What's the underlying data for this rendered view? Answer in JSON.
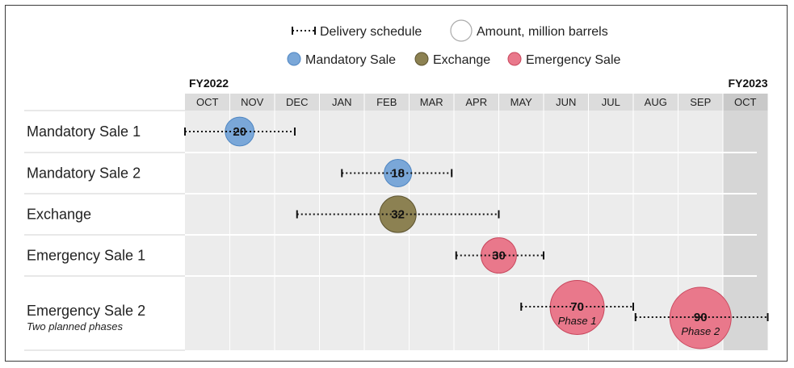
{
  "chart_data": {
    "type": "timeline-bubble",
    "legend": {
      "delivery_label": "Delivery schedule",
      "amount_label": "Amount, million barrels",
      "categories": [
        {
          "name": "Mandatory Sale",
          "color": "#7aa7d8"
        },
        {
          "name": "Exchange",
          "color": "#8c8152"
        },
        {
          "name": "Emergency Sale",
          "color": "#e9788b"
        }
      ]
    },
    "fiscal_years": [
      "FY2022",
      "FY2023"
    ],
    "months": [
      "OCT",
      "NOV",
      "DEC",
      "JAN",
      "FEB",
      "MAR",
      "APR",
      "MAY",
      "JUN",
      "JUL",
      "AUG",
      "SEP",
      "OCT"
    ],
    "rows": [
      {
        "label": "Mandatory Sale 1",
        "sublabel": "",
        "type": "Mandatory Sale",
        "spans": [
          {
            "start": 0,
            "end": 2.45,
            "center": 1.22,
            "amount": 20,
            "phase": ""
          }
        ]
      },
      {
        "label": "Mandatory Sale 2",
        "sublabel": "",
        "type": "Mandatory Sale",
        "spans": [
          {
            "start": 3.5,
            "end": 5.95,
            "center": 4.75,
            "amount": 18,
            "phase": ""
          }
        ]
      },
      {
        "label": "Exchange",
        "sublabel": "",
        "type": "Exchange",
        "spans": [
          {
            "start": 2.5,
            "end": 7.0,
            "center": 4.75,
            "amount": 32,
            "phase": ""
          }
        ]
      },
      {
        "label": "Emergency Sale 1",
        "sublabel": "",
        "type": "Emergency Sale",
        "spans": [
          {
            "start": 6.05,
            "end": 8.0,
            "center": 7.0,
            "amount": 30,
            "phase": ""
          }
        ]
      },
      {
        "label": "Emergency Sale 2",
        "sublabel": "Two planned phases",
        "type": "Emergency Sale",
        "spans": [
          {
            "start": 7.5,
            "end": 10.0,
            "center": 8.75,
            "amount": 70,
            "phase": "Phase 1"
          },
          {
            "start": 10.05,
            "end": 13.0,
            "center": 11.5,
            "amount": 90,
            "phase": "Phase 2"
          }
        ]
      }
    ]
  }
}
